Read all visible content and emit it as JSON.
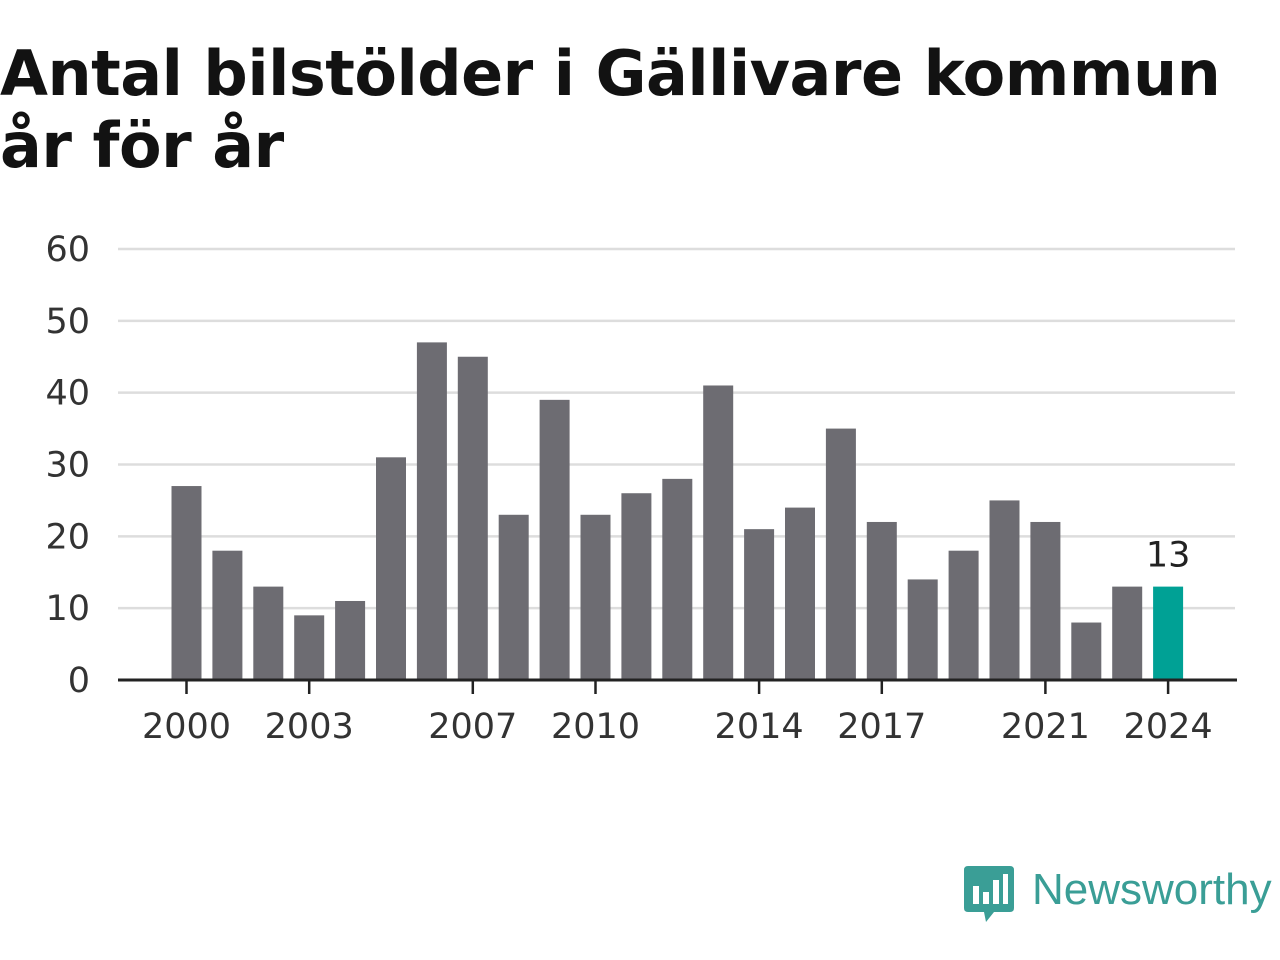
{
  "chart_data": {
    "type": "bar",
    "title": "Antal bilstölder i Gällivare kommun år för år",
    "categories": [
      "2000",
      "2001",
      "2002",
      "2003",
      "2004",
      "2005",
      "2006",
      "2007",
      "2008",
      "2009",
      "2010",
      "2011",
      "2012",
      "2013",
      "2014",
      "2015",
      "2016",
      "2017",
      "2018",
      "2019",
      "2020",
      "2021",
      "2022",
      "2023",
      "2024"
    ],
    "values": [
      27,
      18,
      13,
      9,
      11,
      31,
      47,
      45,
      23,
      39,
      23,
      26,
      28,
      41,
      21,
      24,
      35,
      22,
      14,
      18,
      25,
      22,
      8,
      13,
      13
    ],
    "x_tick_labels": [
      "2000",
      "2003",
      "2007",
      "2010",
      "2014",
      "2017",
      "2021",
      "2024"
    ],
    "y_ticks": [
      0,
      10,
      20,
      30,
      40,
      50,
      60
    ],
    "ylim": [
      0,
      60
    ],
    "xlabel": "",
    "ylabel": "",
    "grid": true,
    "highlight": {
      "category": "2024",
      "label": "13"
    },
    "colors": {
      "bar": "#6d6c72",
      "highlight": "#00a195",
      "grid": "#dddddd",
      "axis": "#222222"
    }
  },
  "branding": {
    "name": "Newsworthy",
    "logo_icon": "newsworthy-chat-bar-icon",
    "color": "#3a9e96"
  }
}
